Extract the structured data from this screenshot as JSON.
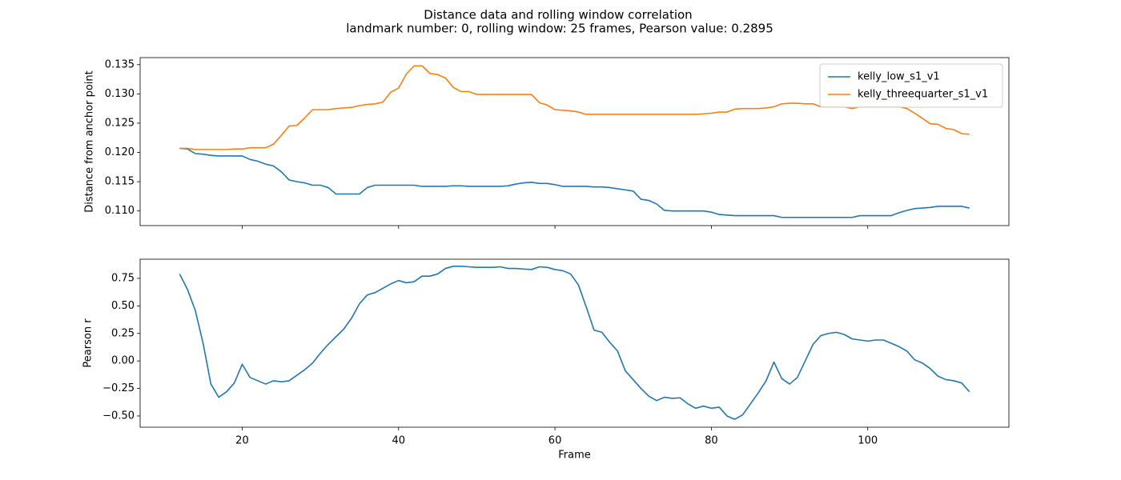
{
  "title": "Distance data and rolling window correlation",
  "subtitle": "landmark number: 0, rolling window: 25 frames, Pearson value: 0.2895",
  "chart_data": [
    {
      "type": "line",
      "ylabel": "Distance from anchor point",
      "sharex": true,
      "legend": "upper right",
      "x": [
        12,
        13,
        14,
        15,
        16,
        17,
        18,
        19,
        20,
        21,
        22,
        23,
        24,
        25,
        26,
        27,
        28,
        29,
        30,
        31,
        32,
        33,
        34,
        35,
        36,
        37,
        38,
        39,
        40,
        41,
        42,
        43,
        44,
        45,
        46,
        47,
        48,
        49,
        50,
        51,
        52,
        53,
        54,
        55,
        56,
        57,
        58,
        59,
        60,
        61,
        62,
        63,
        64,
        65,
        66,
        67,
        68,
        69,
        70,
        71,
        72,
        73,
        74,
        75,
        76,
        77,
        78,
        79,
        80,
        81,
        82,
        83,
        84,
        85,
        86,
        87,
        88,
        89,
        90,
        91,
        92,
        93,
        94,
        95,
        96,
        97,
        98,
        99,
        100,
        101,
        102,
        103,
        104,
        105,
        106,
        107,
        108,
        109,
        110,
        111,
        112,
        113
      ],
      "series": [
        {
          "name": "kelly_low_s1_v1",
          "color": "#1f77b4",
          "values": [
            0.1207,
            0.1206,
            0.1198,
            0.1197,
            0.1195,
            0.1194,
            0.1194,
            0.1194,
            0.1194,
            0.1188,
            0.1185,
            0.118,
            0.1177,
            0.1167,
            0.1153,
            0.115,
            0.1148,
            0.1144,
            0.1144,
            0.114,
            0.1129,
            0.1129,
            0.1129,
            0.1129,
            0.114,
            0.1144,
            0.1144,
            0.1144,
            0.1144,
            0.1144,
            0.1144,
            0.1142,
            0.1142,
            0.1142,
            0.1142,
            0.1143,
            0.1143,
            0.1142,
            0.1142,
            0.1142,
            0.1142,
            0.1142,
            0.1143,
            0.1146,
            0.1148,
            0.1149,
            0.1147,
            0.1147,
            0.1145,
            0.1142,
            0.1142,
            0.1142,
            0.1142,
            0.1141,
            0.1141,
            0.114,
            0.1138,
            0.1136,
            0.1134,
            0.112,
            0.1118,
            0.1112,
            0.1101,
            0.11,
            0.11,
            0.11,
            0.11,
            0.11,
            0.1098,
            0.1094,
            0.1093,
            0.1092,
            0.1092,
            0.1092,
            0.1092,
            0.1092,
            0.1092,
            0.1089,
            0.1089,
            0.1089,
            0.1089,
            0.1089,
            0.1089,
            0.1089,
            0.1089,
            0.1089,
            0.1089,
            0.1092,
            0.1092,
            0.1092,
            0.1092,
            0.1092,
            0.1097,
            0.1101,
            0.1104,
            0.1105,
            0.1106,
            0.1108,
            0.1108,
            0.1108,
            0.1108,
            0.1105
          ]
        },
        {
          "name": "kelly_threequarter_s1_v1",
          "color": "#ff7f0e",
          "values": [
            0.1207,
            0.1207,
            0.1205,
            0.1205,
            0.1205,
            0.1205,
            0.1205,
            0.1206,
            0.1206,
            0.1208,
            0.1208,
            0.1208,
            0.1214,
            0.1229,
            0.1245,
            0.1246,
            0.1259,
            0.1273,
            0.1273,
            0.1273,
            0.1275,
            0.1276,
            0.1277,
            0.128,
            0.1282,
            0.1283,
            0.1286,
            0.1303,
            0.131,
            0.1334,
            0.1348,
            0.1348,
            0.1335,
            0.1333,
            0.1327,
            0.1311,
            0.1304,
            0.1304,
            0.1299,
            0.1299,
            0.1299,
            0.1299,
            0.1299,
            0.1299,
            0.1299,
            0.1299,
            0.1285,
            0.1281,
            0.1273,
            0.1272,
            0.1271,
            0.1269,
            0.1265,
            0.1265,
            0.1265,
            0.1265,
            0.1265,
            0.1265,
            0.1265,
            0.1265,
            0.1265,
            0.1265,
            0.1265,
            0.1265,
            0.1265,
            0.1265,
            0.1265,
            0.1266,
            0.1267,
            0.1269,
            0.1269,
            0.1274,
            0.1275,
            0.1275,
            0.1275,
            0.1276,
            0.1278,
            0.1283,
            0.1284,
            0.1284,
            0.1283,
            0.1283,
            0.1278,
            0.1278,
            0.1278,
            0.1278,
            0.1275,
            0.1278,
            0.1278,
            0.1278,
            0.1278,
            0.1278,
            0.1278,
            0.1275,
            0.1267,
            0.1258,
            0.1249,
            0.1248,
            0.1241,
            0.1239,
            0.1232,
            0.1231
          ]
        }
      ],
      "xlim": [
        6.95,
        118.05
      ],
      "xticks": [
        20,
        40,
        60,
        80,
        100
      ],
      "ylim": [
        0.1075,
        0.1362
      ],
      "yticks": [
        {
          "value": 0.11,
          "label": "0.110"
        },
        0.115,
        {
          "value": 0.12,
          "label": "0.120"
        },
        0.125,
        {
          "value": 0.13,
          "label": "0.130"
        },
        0.135
      ]
    },
    {
      "type": "line",
      "xlabel": "Frame",
      "ylabel": "Pearson r",
      "x": [
        12,
        13,
        14,
        15,
        16,
        17,
        18,
        19,
        20,
        21,
        22,
        23,
        24,
        25,
        26,
        27,
        28,
        29,
        30,
        31,
        32,
        33,
        34,
        35,
        36,
        37,
        38,
        39,
        40,
        41,
        42,
        43,
        44,
        45,
        46,
        47,
        48,
        49,
        50,
        51,
        52,
        53,
        54,
        55,
        56,
        57,
        58,
        59,
        60,
        61,
        62,
        63,
        64,
        65,
        66,
        67,
        68,
        69,
        70,
        71,
        72,
        73,
        74,
        75,
        76,
        77,
        78,
        79,
        80,
        81,
        82,
        83,
        84,
        85,
        86,
        87,
        88,
        89,
        90,
        91,
        92,
        93,
        94,
        95,
        96,
        97,
        98,
        99,
        100,
        101,
        102,
        103,
        104,
        105,
        106,
        107,
        108,
        109,
        110,
        111,
        112,
        113
      ],
      "color": "#1f77b4",
      "values": [
        0.79,
        0.65,
        0.46,
        0.16,
        -0.21,
        -0.33,
        -0.28,
        -0.2,
        -0.03,
        -0.15,
        -0.18,
        -0.21,
        -0.18,
        -0.19,
        -0.18,
        -0.13,
        -0.08,
        -0.02,
        0.07,
        0.15,
        0.22,
        0.29,
        0.39,
        0.52,
        0.6,
        0.62,
        0.66,
        0.7,
        0.73,
        0.71,
        0.72,
        0.77,
        0.77,
        0.79,
        0.84,
        0.86,
        0.86,
        0.855,
        0.85,
        0.85,
        0.85,
        0.855,
        0.84,
        0.84,
        0.835,
        0.83,
        0.855,
        0.85,
        0.83,
        0.82,
        0.79,
        0.69,
        0.49,
        0.28,
        0.26,
        0.17,
        0.09,
        -0.09,
        -0.17,
        -0.25,
        -0.32,
        -0.36,
        -0.33,
        -0.34,
        -0.335,
        -0.39,
        -0.43,
        -0.41,
        -0.43,
        -0.42,
        -0.5,
        -0.53,
        -0.49,
        -0.39,
        -0.29,
        -0.18,
        -0.01,
        -0.16,
        -0.21,
        -0.15,
        0.0,
        0.15,
        0.23,
        0.25,
        0.26,
        0.24,
        0.2,
        0.19,
        0.18,
        0.19,
        0.19,
        0.16,
        0.13,
        0.09,
        0.01,
        -0.02,
        -0.07,
        -0.14,
        -0.17,
        -0.18,
        -0.2,
        -0.28
      ],
      "xlim": [
        6.95,
        118.05
      ],
      "xticks": [
        20,
        40,
        60,
        80,
        100
      ],
      "ylim": [
        -0.602,
        0.924
      ],
      "yticks": [
        {
          "value": -0.5,
          "label": "−0.50"
        },
        {
          "value": -0.25,
          "label": "−0.25"
        },
        {
          "value": 0,
          "label": "0.00"
        },
        0.25,
        {
          "value": 0.5,
          "label": "0.50"
        },
        0.75
      ]
    }
  ]
}
